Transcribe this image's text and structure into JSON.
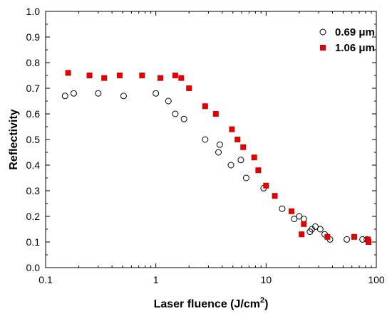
{
  "chart_data": {
    "type": "scatter",
    "title": "",
    "xlabel": "Laser fluence (J/cm",
    "xlabel_sup": "2",
    "xlabel_suffix": ")",
    "ylabel": "Reflectivity",
    "xscale": "log",
    "xlim": [
      0.1,
      100
    ],
    "ylim": [
      0.0,
      1.0
    ],
    "xticks": [
      0.1,
      1,
      10,
      100
    ],
    "xtick_labels": [
      "0.1",
      "1",
      "10",
      "100"
    ],
    "yticks": [
      0.0,
      0.1,
      0.2,
      0.3,
      0.4,
      0.5,
      0.6,
      0.7,
      0.8,
      0.9,
      1.0
    ],
    "ytick_labels": [
      "0.0",
      "0.1",
      "0.2",
      "0.3",
      "0.4",
      "0.5",
      "0.6",
      "0.7",
      "0.8",
      "0.9",
      "1.0"
    ],
    "grid": false,
    "legend_position": "top-right",
    "series": [
      {
        "name": "0.69 μm",
        "marker": "open-circle",
        "color": "#000000",
        "points": [
          [
            0.15,
            0.67
          ],
          [
            0.18,
            0.68
          ],
          [
            0.3,
            0.68
          ],
          [
            0.51,
            0.67
          ],
          [
            1.0,
            0.68
          ],
          [
            1.3,
            0.65
          ],
          [
            1.5,
            0.6
          ],
          [
            1.8,
            0.58
          ],
          [
            2.8,
            0.5
          ],
          [
            3.7,
            0.45
          ],
          [
            3.8,
            0.48
          ],
          [
            4.8,
            0.4
          ],
          [
            5.9,
            0.42
          ],
          [
            6.6,
            0.35
          ],
          [
            9.5,
            0.31
          ],
          [
            14,
            0.23
          ],
          [
            18,
            0.19
          ],
          [
            20,
            0.2
          ],
          [
            22,
            0.19
          ],
          [
            25,
            0.14
          ],
          [
            26,
            0.15
          ],
          [
            28,
            0.16
          ],
          [
            31,
            0.15
          ],
          [
            34,
            0.13
          ],
          [
            38,
            0.11
          ],
          [
            54,
            0.11
          ],
          [
            75,
            0.11
          ],
          [
            82,
            0.11
          ]
        ]
      },
      {
        "name": "1.06 μm",
        "marker": "filled-square",
        "color": "#e00000",
        "points": [
          [
            0.16,
            0.76
          ],
          [
            0.25,
            0.75
          ],
          [
            0.34,
            0.74
          ],
          [
            0.47,
            0.75
          ],
          [
            0.75,
            0.75
          ],
          [
            1.1,
            0.74
          ],
          [
            1.5,
            0.75
          ],
          [
            1.7,
            0.74
          ],
          [
            2.0,
            0.7
          ],
          [
            2.8,
            0.63
          ],
          [
            3.5,
            0.6
          ],
          [
            4.9,
            0.54
          ],
          [
            5.5,
            0.5
          ],
          [
            6.2,
            0.47
          ],
          [
            7.8,
            0.43
          ],
          [
            8.5,
            0.38
          ],
          [
            10,
            0.32
          ],
          [
            12,
            0.28
          ],
          [
            17,
            0.22
          ],
          [
            21,
            0.13
          ],
          [
            22,
            0.17
          ],
          [
            36,
            0.12
          ],
          [
            63,
            0.12
          ],
          [
            84,
            0.11
          ],
          [
            85,
            0.1
          ]
        ]
      }
    ]
  }
}
